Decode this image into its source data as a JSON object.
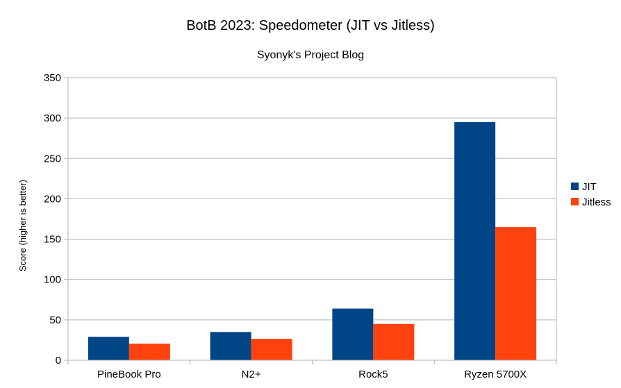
{
  "chart_data": {
    "type": "bar",
    "title": "BotB 2023: Speedometer (JIT vs Jitless)",
    "subtitle": "Syonyk's Project Blog",
    "xlabel": "",
    "ylabel": "Score (higher is better)",
    "categories": [
      "PineBook Pro",
      "N2+",
      "Rock5",
      "Ryzen 5700X"
    ],
    "series": [
      {
        "name": "JIT",
        "color": "#004586",
        "values": [
          29,
          35,
          64,
          295
        ]
      },
      {
        "name": "Jitless",
        "color": "#ff420e",
        "values": [
          20.5,
          26.5,
          45,
          165
        ]
      }
    ],
    "ylim": [
      0,
      350
    ],
    "yticks": [
      0,
      50,
      100,
      150,
      200,
      250,
      300,
      350
    ],
    "grid": true,
    "legend": "right"
  }
}
